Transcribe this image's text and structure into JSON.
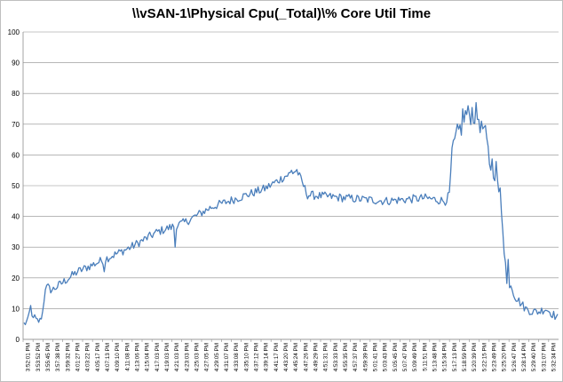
{
  "chart_data": {
    "type": "line",
    "title": "\\\\vSAN-1\\Physical Cpu(_Total)\\% Core Util Time",
    "xlabel": "",
    "ylabel": "",
    "ylim": [
      0,
      100
    ],
    "yticks": [
      0,
      10,
      20,
      30,
      40,
      50,
      60,
      70,
      80,
      90,
      100
    ],
    "grid": "horizontal",
    "legend": "none",
    "line_color": "#4a7ebb",
    "x_tick_labels": [
      "3:52:01 PM",
      "3:53:52 PM",
      "3:55:45 PM",
      "3:57:38 PM",
      "3:59:32 PM",
      "4:01:27 PM",
      "4:03:22 PM",
      "4:05:17 PM",
      "4:07:13 PM",
      "4:09:10 PM",
      "4:11:08 PM",
      "4:13:06 PM",
      "4:15:04 PM",
      "4:17:03 PM",
      "4:19:03 PM",
      "4:21:03 PM",
      "4:23:03 PM",
      "4:25:03 PM",
      "4:27:05 PM",
      "4:29:05 PM",
      "4:31:07 PM",
      "4:33:08 PM",
      "4:35:10 PM",
      "4:37:12 PM",
      "4:39:14 PM",
      "4:41:17 PM",
      "4:43:20 PM",
      "4:45:24 PM",
      "4:47:26 PM",
      "4:49:29 PM",
      "4:51:31 PM",
      "4:53:33 PM",
      "4:55:35 PM",
      "4:57:37 PM",
      "4:59:39 PM",
      "5:01:41 PM",
      "5:03:43 PM",
      "5:05:45 PM",
      "5:07:47 PM",
      "5:09:49 PM",
      "5:11:51 PM",
      "5:13:48 PM",
      "5:15:34 PM",
      "5:17:13 PM",
      "5:18:59 PM",
      "5:20:39 PM",
      "5:22:15 PM",
      "5:23:49 PM",
      "5:25:20 PM",
      "5:26:47 PM",
      "5:28:14 PM",
      "5:29:40 PM",
      "5:31:07 PM",
      "5:32:34 PM"
    ],
    "anchors": [
      [
        0,
        5
      ],
      [
        3,
        6
      ],
      [
        5,
        11
      ],
      [
        7,
        6
      ],
      [
        12,
        6
      ],
      [
        14,
        9
      ],
      [
        16,
        17
      ],
      [
        21,
        16
      ],
      [
        40,
        22
      ],
      [
        60,
        26
      ],
      [
        80,
        30
      ],
      [
        100,
        35
      ],
      [
        120,
        38
      ],
      [
        140,
        43
      ],
      [
        160,
        46
      ],
      [
        180,
        49
      ],
      [
        195,
        53
      ],
      [
        204,
        55
      ],
      [
        208,
        51
      ],
      [
        212,
        47
      ],
      [
        240,
        46
      ],
      [
        270,
        45
      ],
      [
        300,
        46
      ],
      [
        315,
        45
      ],
      [
        318,
        47
      ],
      [
        320,
        61
      ],
      [
        324,
        66
      ],
      [
        330,
        73
      ],
      [
        335,
        74
      ],
      [
        340,
        72
      ],
      [
        344,
        68
      ],
      [
        348,
        58
      ],
      [
        353,
        55
      ],
      [
        356,
        48
      ],
      [
        358,
        38
      ],
      [
        361,
        18
      ],
      [
        364,
        18
      ],
      [
        367,
        14
      ],
      [
        375,
        10
      ],
      [
        380,
        9
      ],
      [
        385,
        9
      ],
      [
        390,
        10
      ],
      [
        396,
        8
      ],
      [
        399,
        7
      ]
    ],
    "n_points": 400,
    "noise_amplitude": 1.4,
    "spikes": [
      [
        5,
        11
      ],
      [
        8,
        8
      ],
      [
        18,
        18
      ],
      [
        60,
        22
      ],
      [
        113,
        30
      ],
      [
        200,
        55
      ],
      [
        328,
        75
      ],
      [
        332,
        76
      ],
      [
        338,
        77
      ],
      [
        342,
        71
      ],
      [
        355,
        48
      ],
      [
        362,
        26
      ]
    ]
  }
}
